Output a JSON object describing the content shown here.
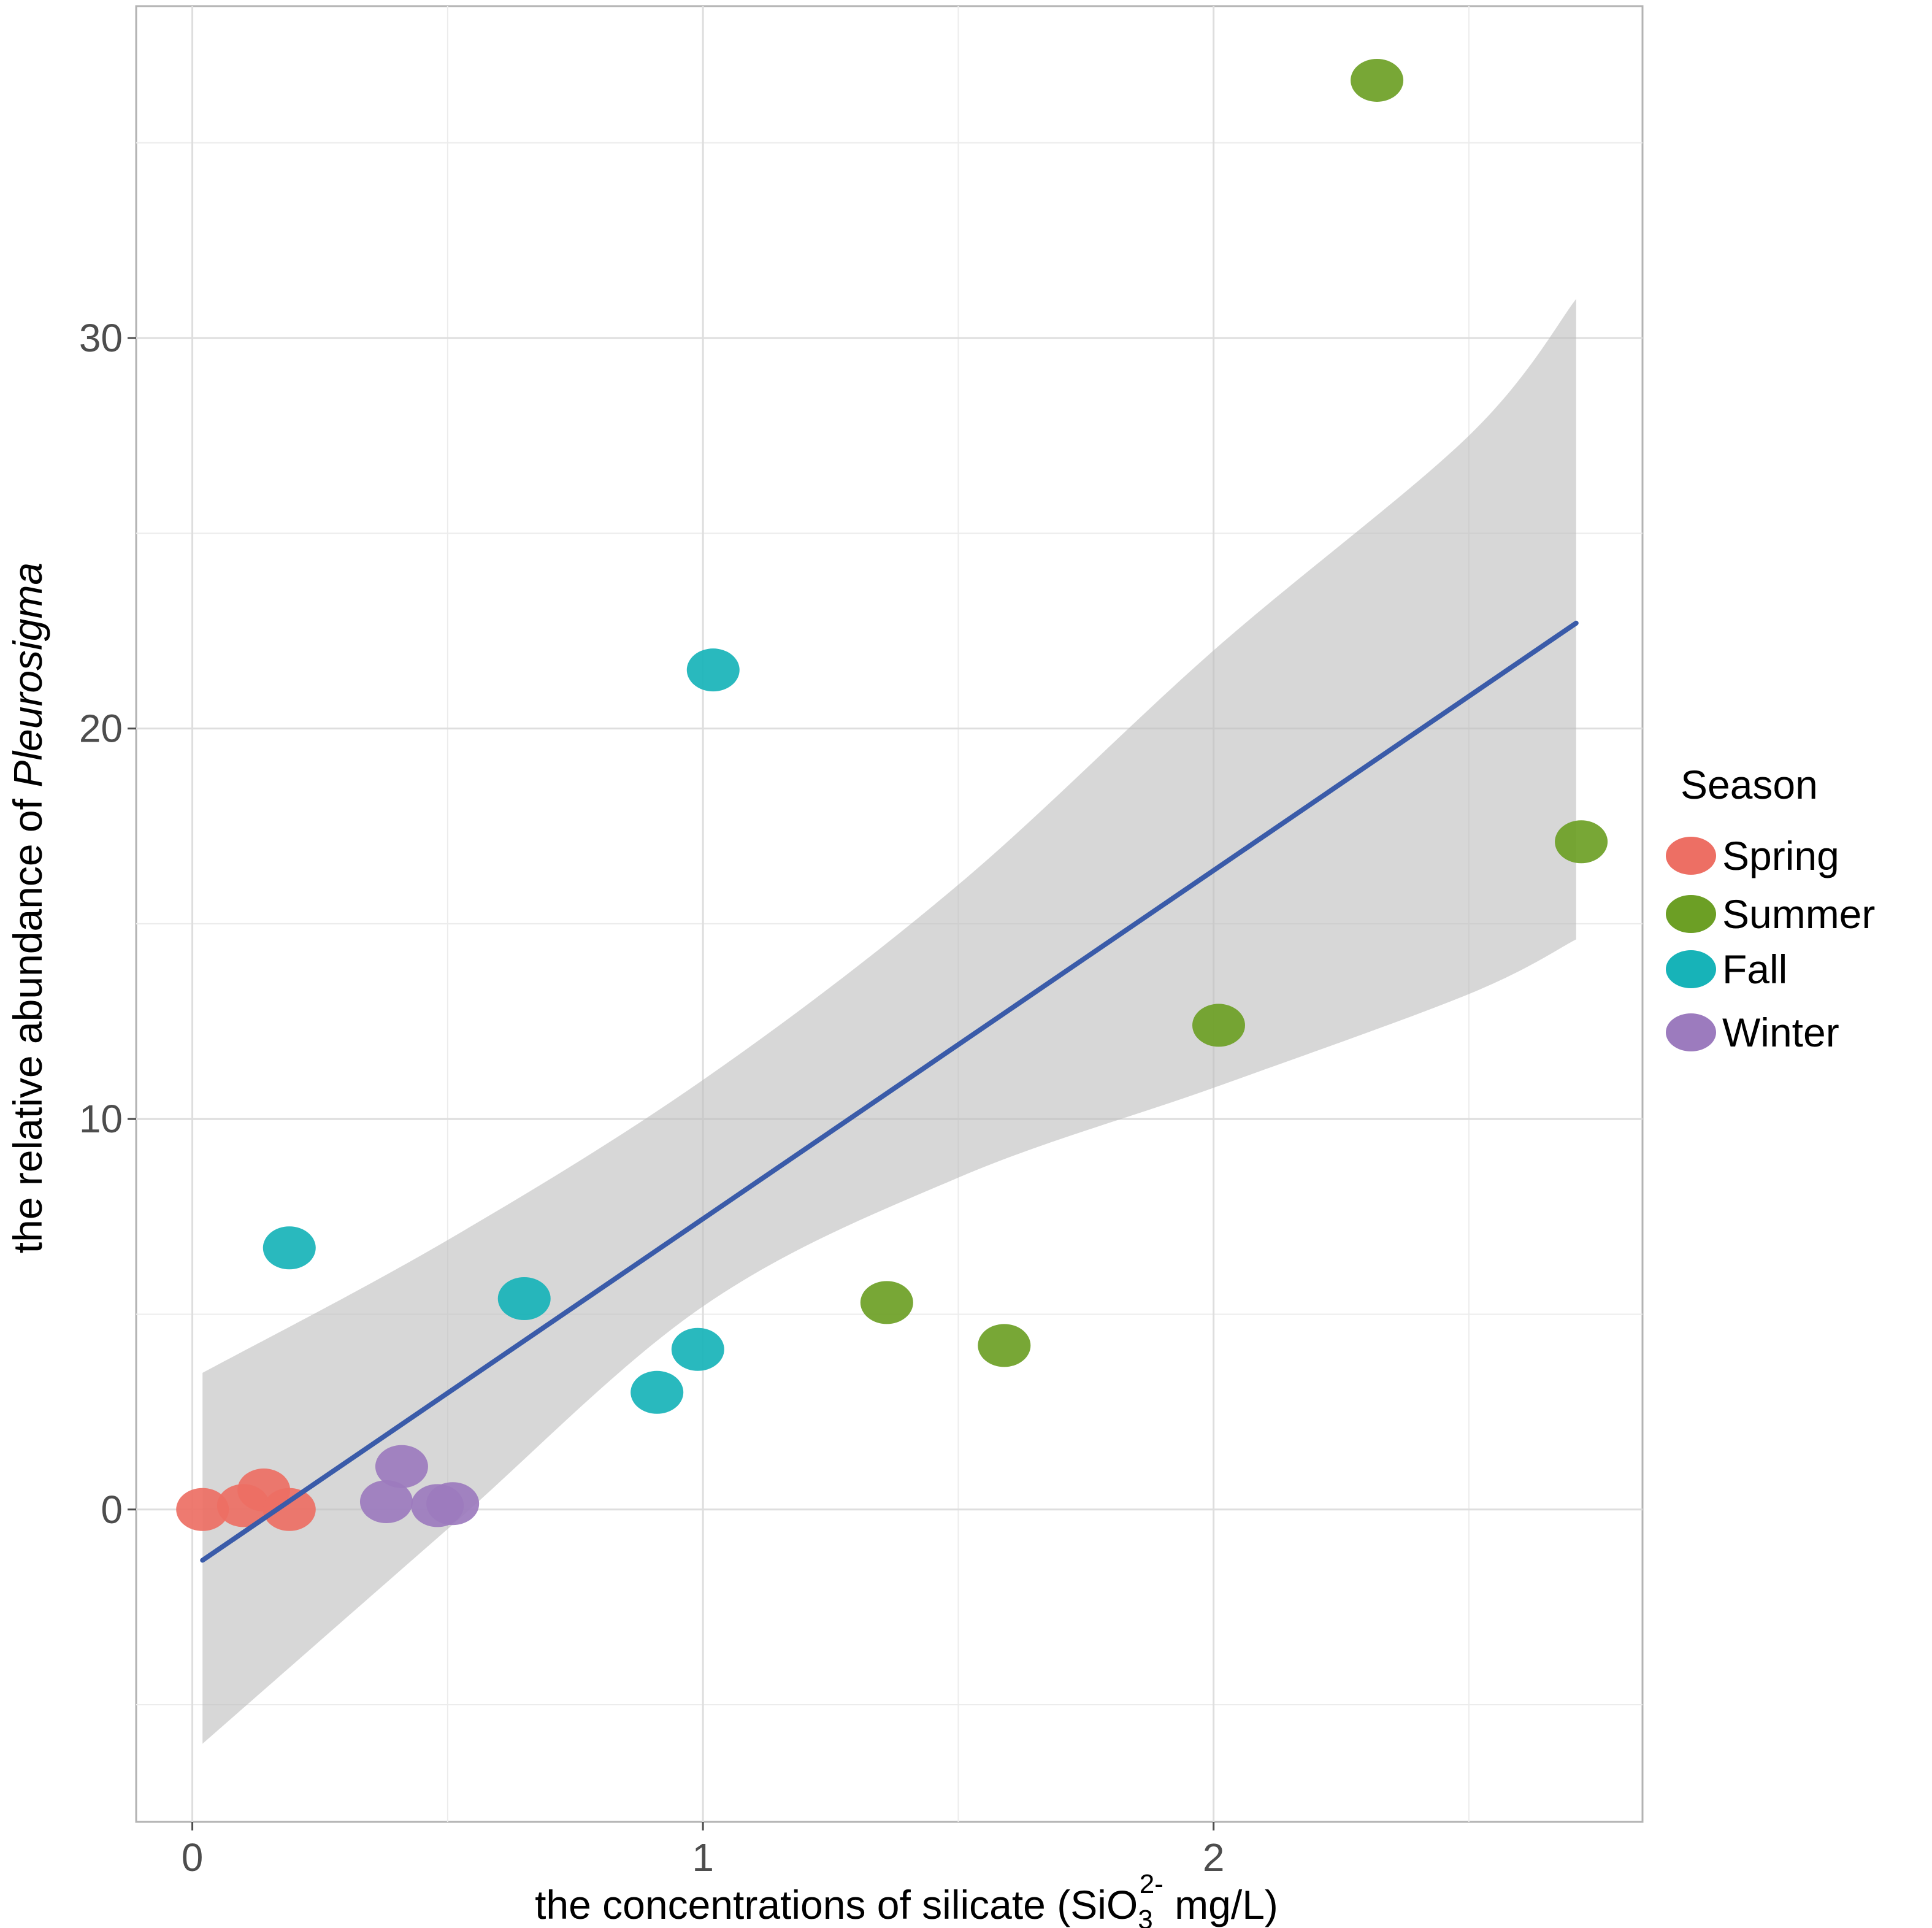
{
  "chart_data": {
    "type": "scatter",
    "title": "",
    "xlabel_prefix": "the concentrations of silicate (SiO",
    "xlabel_sub": "3",
    "xlabel_sup": "2-",
    "xlabel_suffix": " mg/L)",
    "ylabel_prefix": "the relative abundance of ",
    "ylabel_italic": "Pleurosigma",
    "xlim": [
      -0.11,
      2.84
    ],
    "ylim": [
      -8,
      38.5
    ],
    "xticks": [
      0,
      1,
      2
    ],
    "xtick_labels": [
      "0",
      "1",
      "2"
    ],
    "xminor": [
      0.5,
      1.5,
      2.5
    ],
    "yticks": [
      0,
      10,
      20,
      30
    ],
    "ytick_labels": [
      "0",
      "10",
      "20",
      "30"
    ],
    "yminor": [
      -5,
      5,
      15,
      25,
      35
    ],
    "grid": true,
    "legend": {
      "title": "Season",
      "placement": "right",
      "entries": [
        {
          "label": "Spring",
          "color": "#ED6F64"
        },
        {
          "label": "Summer",
          "color": "#6C9F25"
        },
        {
          "label": "Fall",
          "color": "#17B3B8"
        },
        {
          "label": "Winter",
          "color": "#9C7BBE"
        }
      ]
    },
    "series": [
      {
        "name": "Spring",
        "color": "#ED6F64",
        "points": [
          [
            0.02,
            0.0
          ],
          [
            0.1,
            0.1
          ],
          [
            0.14,
            0.5
          ],
          [
            0.19,
            0.0
          ]
        ]
      },
      {
        "name": "Summer",
        "color": "#6C9F25",
        "points": [
          [
            1.36,
            5.3
          ],
          [
            1.59,
            4.2
          ],
          [
            2.01,
            12.4
          ],
          [
            2.32,
            36.6
          ],
          [
            2.72,
            17.1
          ]
        ]
      },
      {
        "name": "Fall",
        "color": "#17B3B8",
        "points": [
          [
            0.19,
            6.7
          ],
          [
            0.65,
            5.4
          ],
          [
            0.91,
            3.0
          ],
          [
            0.99,
            4.1
          ],
          [
            1.02,
            21.5
          ]
        ]
      },
      {
        "name": "Winter",
        "color": "#9C7BBE",
        "points": [
          [
            0.38,
            0.2
          ],
          [
            0.41,
            1.1
          ],
          [
            0.48,
            0.1
          ],
          [
            0.51,
            0.15
          ]
        ]
      }
    ],
    "regression": {
      "color": "#3A5BA9",
      "ci_color": "#BDBDBD",
      "x": [
        0.02,
        0.5,
        1.0,
        1.5,
        2.0,
        2.5,
        2.71
      ],
      "y": [
        -1.3,
        3.3,
        7.5,
        11.75,
        16.0,
        20.9,
        22.7
      ],
      "ci_low": [
        -6.0,
        -0.5,
        5.2,
        8.5,
        10.8,
        13.2,
        14.6
      ],
      "ci_high": [
        3.5,
        6.9,
        11.0,
        16.0,
        22.0,
        27.5,
        31.0
      ]
    }
  }
}
